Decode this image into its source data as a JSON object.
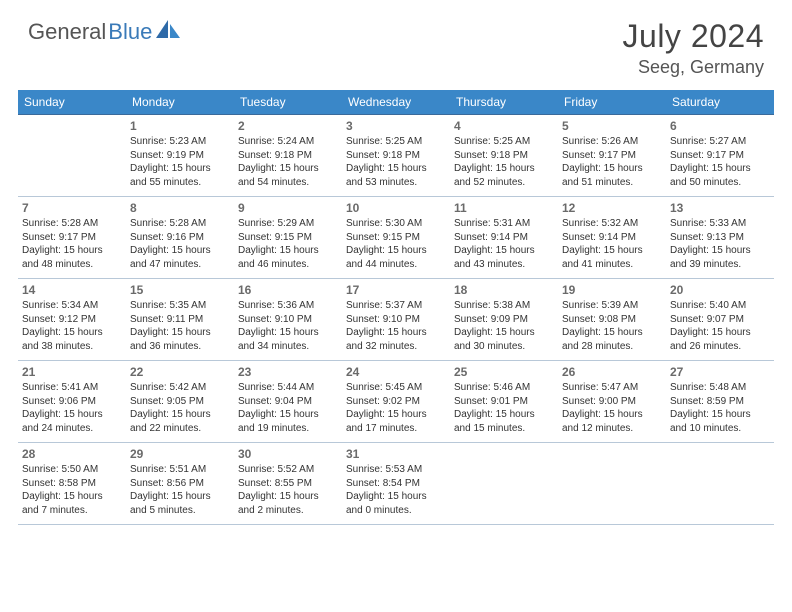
{
  "brand": {
    "part1": "General",
    "part2": "Blue"
  },
  "title": "July 2024",
  "location": "Seeg, Germany",
  "colors": {
    "header_bg": "#3a87c8",
    "header_text": "#ffffff",
    "row_divider": "#3a6a9a",
    "brand_accent": "#3a7ab8",
    "text": "#333333",
    "daynum": "#6a6a6a"
  },
  "day_headers": [
    "Sunday",
    "Monday",
    "Tuesday",
    "Wednesday",
    "Thursday",
    "Friday",
    "Saturday"
  ],
  "leading_blanks": 1,
  "days": [
    {
      "n": "1",
      "sr": "5:23 AM",
      "ss": "9:19 PM",
      "dl": "15 hours and 55 minutes."
    },
    {
      "n": "2",
      "sr": "5:24 AM",
      "ss": "9:18 PM",
      "dl": "15 hours and 54 minutes."
    },
    {
      "n": "3",
      "sr": "5:25 AM",
      "ss": "9:18 PM",
      "dl": "15 hours and 53 minutes."
    },
    {
      "n": "4",
      "sr": "5:25 AM",
      "ss": "9:18 PM",
      "dl": "15 hours and 52 minutes."
    },
    {
      "n": "5",
      "sr": "5:26 AM",
      "ss": "9:17 PM",
      "dl": "15 hours and 51 minutes."
    },
    {
      "n": "6",
      "sr": "5:27 AM",
      "ss": "9:17 PM",
      "dl": "15 hours and 50 minutes."
    },
    {
      "n": "7",
      "sr": "5:28 AM",
      "ss": "9:17 PM",
      "dl": "15 hours and 48 minutes."
    },
    {
      "n": "8",
      "sr": "5:28 AM",
      "ss": "9:16 PM",
      "dl": "15 hours and 47 minutes."
    },
    {
      "n": "9",
      "sr": "5:29 AM",
      "ss": "9:15 PM",
      "dl": "15 hours and 46 minutes."
    },
    {
      "n": "10",
      "sr": "5:30 AM",
      "ss": "9:15 PM",
      "dl": "15 hours and 44 minutes."
    },
    {
      "n": "11",
      "sr": "5:31 AM",
      "ss": "9:14 PM",
      "dl": "15 hours and 43 minutes."
    },
    {
      "n": "12",
      "sr": "5:32 AM",
      "ss": "9:14 PM",
      "dl": "15 hours and 41 minutes."
    },
    {
      "n": "13",
      "sr": "5:33 AM",
      "ss": "9:13 PM",
      "dl": "15 hours and 39 minutes."
    },
    {
      "n": "14",
      "sr": "5:34 AM",
      "ss": "9:12 PM",
      "dl": "15 hours and 38 minutes."
    },
    {
      "n": "15",
      "sr": "5:35 AM",
      "ss": "9:11 PM",
      "dl": "15 hours and 36 minutes."
    },
    {
      "n": "16",
      "sr": "5:36 AM",
      "ss": "9:10 PM",
      "dl": "15 hours and 34 minutes."
    },
    {
      "n": "17",
      "sr": "5:37 AM",
      "ss": "9:10 PM",
      "dl": "15 hours and 32 minutes."
    },
    {
      "n": "18",
      "sr": "5:38 AM",
      "ss": "9:09 PM",
      "dl": "15 hours and 30 minutes."
    },
    {
      "n": "19",
      "sr": "5:39 AM",
      "ss": "9:08 PM",
      "dl": "15 hours and 28 minutes."
    },
    {
      "n": "20",
      "sr": "5:40 AM",
      "ss": "9:07 PM",
      "dl": "15 hours and 26 minutes."
    },
    {
      "n": "21",
      "sr": "5:41 AM",
      "ss": "9:06 PM",
      "dl": "15 hours and 24 minutes."
    },
    {
      "n": "22",
      "sr": "5:42 AM",
      "ss": "9:05 PM",
      "dl": "15 hours and 22 minutes."
    },
    {
      "n": "23",
      "sr": "5:44 AM",
      "ss": "9:04 PM",
      "dl": "15 hours and 19 minutes."
    },
    {
      "n": "24",
      "sr": "5:45 AM",
      "ss": "9:02 PM",
      "dl": "15 hours and 17 minutes."
    },
    {
      "n": "25",
      "sr": "5:46 AM",
      "ss": "9:01 PM",
      "dl": "15 hours and 15 minutes."
    },
    {
      "n": "26",
      "sr": "5:47 AM",
      "ss": "9:00 PM",
      "dl": "15 hours and 12 minutes."
    },
    {
      "n": "27",
      "sr": "5:48 AM",
      "ss": "8:59 PM",
      "dl": "15 hours and 10 minutes."
    },
    {
      "n": "28",
      "sr": "5:50 AM",
      "ss": "8:58 PM",
      "dl": "15 hours and 7 minutes."
    },
    {
      "n": "29",
      "sr": "5:51 AM",
      "ss": "8:56 PM",
      "dl": "15 hours and 5 minutes."
    },
    {
      "n": "30",
      "sr": "5:52 AM",
      "ss": "8:55 PM",
      "dl": "15 hours and 2 minutes."
    },
    {
      "n": "31",
      "sr": "5:53 AM",
      "ss": "8:54 PM",
      "dl": "15 hours and 0 minutes."
    }
  ],
  "labels": {
    "sunrise": "Sunrise:",
    "sunset": "Sunset:",
    "daylight": "Daylight:"
  }
}
